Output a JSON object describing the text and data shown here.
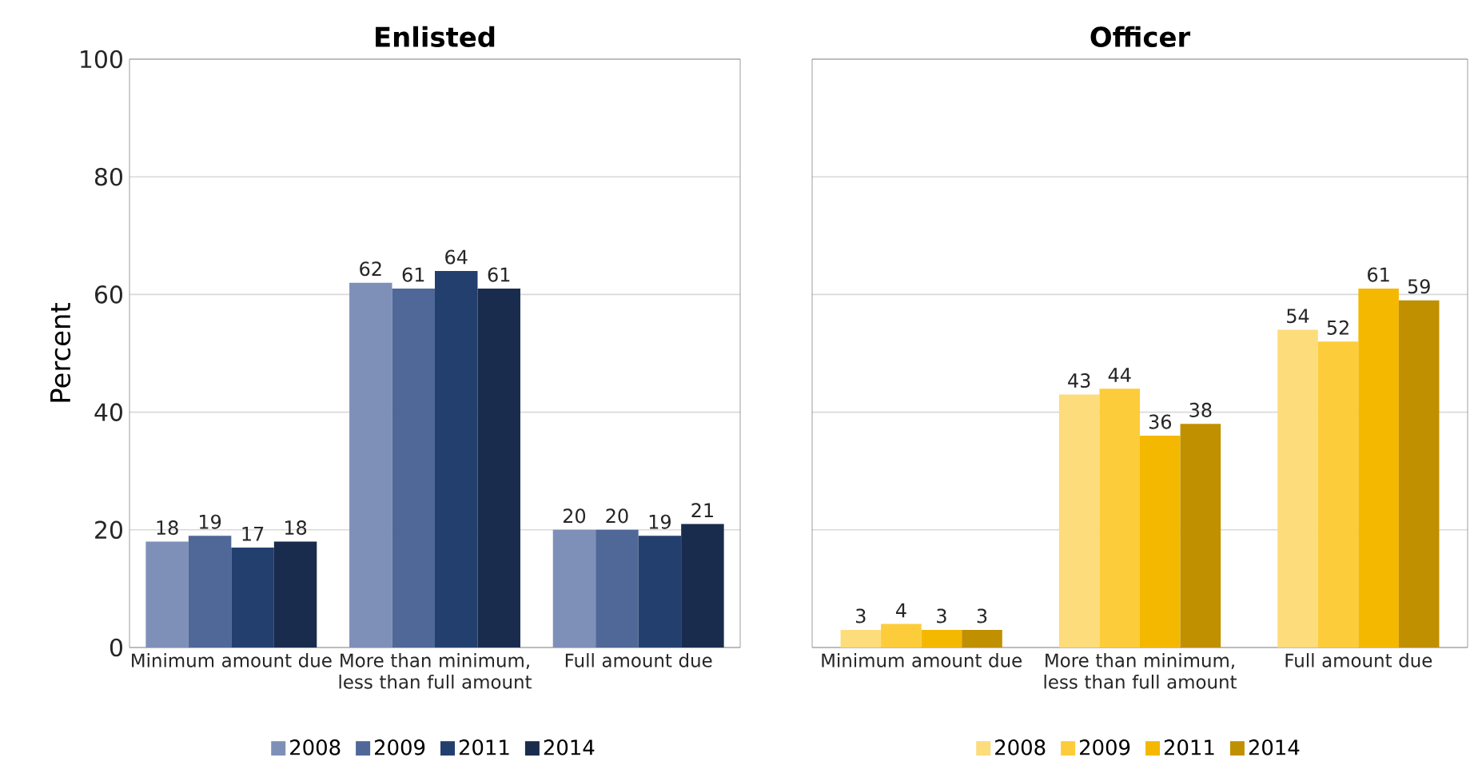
{
  "chart_data": [
    {
      "type": "bar",
      "title": "Enlisted",
      "ylabel": "Percent",
      "categories": [
        "Minimum amount due",
        "More than minimum, less than full amount",
        "Full amount due"
      ],
      "series": [
        {
          "name": "2008",
          "color": "#7f90b8",
          "values": [
            18,
            62,
            20
          ]
        },
        {
          "name": "2009",
          "color": "#4f6898",
          "values": [
            19,
            61,
            20
          ]
        },
        {
          "name": "2011",
          "color": "#233f6e",
          "values": [
            17,
            64,
            19
          ]
        },
        {
          "name": "2014",
          "color": "#1a2c4d",
          "values": [
            18,
            61,
            21
          ]
        }
      ],
      "ylim": [
        0,
        100
      ],
      "yticks": [
        0,
        20,
        40,
        60,
        80,
        100
      ],
      "grid": "y",
      "legend": "bottom",
      "data_labels": true
    },
    {
      "type": "bar",
      "title": "Officer",
      "categories": [
        "Minimum amount due",
        "More than minimum, less than full amount",
        "Full amount due"
      ],
      "series": [
        {
          "name": "2008",
          "color": "#fddc7c",
          "values": [
            3,
            43,
            54
          ]
        },
        {
          "name": "2009",
          "color": "#fccc3a",
          "values": [
            4,
            44,
            52
          ]
        },
        {
          "name": "2011",
          "color": "#f5b800",
          "values": [
            3,
            36,
            61
          ]
        },
        {
          "name": "2014",
          "color": "#c09000",
          "values": [
            3,
            38,
            59
          ]
        }
      ],
      "ylim": [
        0,
        100
      ],
      "yticks": [
        0,
        20,
        40,
        60,
        80,
        100
      ],
      "grid": "y",
      "legend": "bottom",
      "data_labels": true,
      "tick_labels": "x"
    }
  ]
}
